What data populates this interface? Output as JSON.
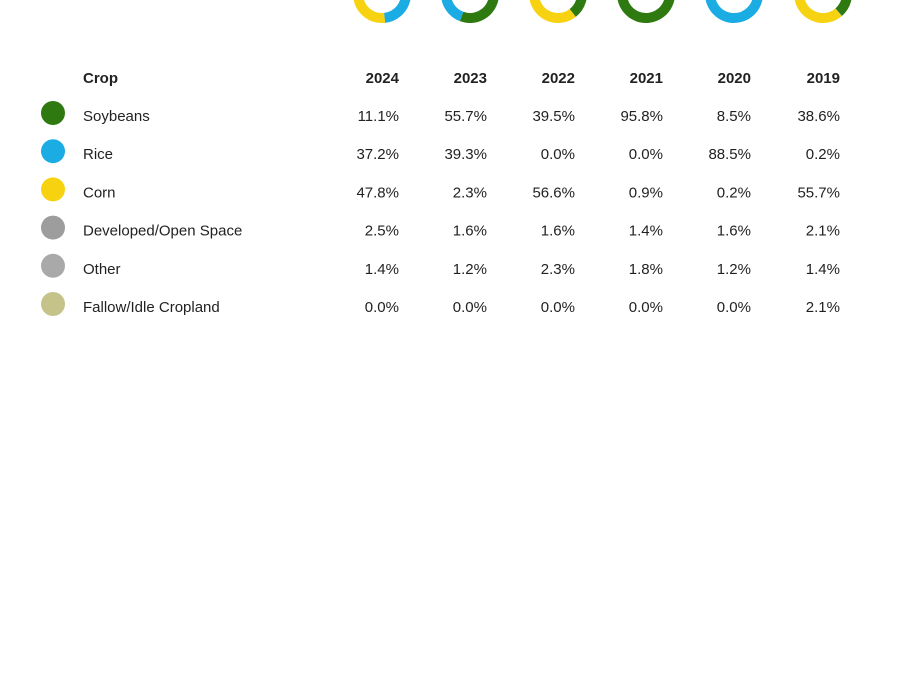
{
  "table": {
    "header": [
      "Crop",
      "2024",
      "2023",
      "2022",
      "2021",
      "2020",
      "2019"
    ],
    "rows": [
      {
        "color": "#2e7a10",
        "cells": [
          "Soybeans",
          "11.1%",
          "55.7%",
          "39.5%",
          "95.8%",
          "8.5%",
          "38.6%"
        ]
      },
      {
        "color": "#1bace4",
        "cells": [
          "Rice",
          "37.2%",
          "39.3%",
          "0.0%",
          "0.0%",
          "88.5%",
          "0.2%"
        ]
      },
      {
        "color": "#f7d210",
        "cells": [
          "Corn",
          "47.8%",
          "2.3%",
          "56.6%",
          "0.9%",
          "0.2%",
          "55.7%"
        ]
      },
      {
        "color": "#9d9d9d",
        "cells": [
          "Developed/Open Space",
          "2.5%",
          "1.6%",
          "1.6%",
          "1.4%",
          "1.6%",
          "2.1%"
        ]
      },
      {
        "color": "#a9a9a9",
        "cells": [
          "Other",
          "1.4%",
          "1.2%",
          "2.3%",
          "1.8%",
          "1.2%",
          "1.4%"
        ]
      },
      {
        "color": "#c6c38a",
        "cells": [
          "Fallow/Idle Cropland",
          "0.0%",
          "0.0%",
          "0.0%",
          "0.0%",
          "0.0%",
          "2.1%"
        ]
      }
    ]
  }
}
